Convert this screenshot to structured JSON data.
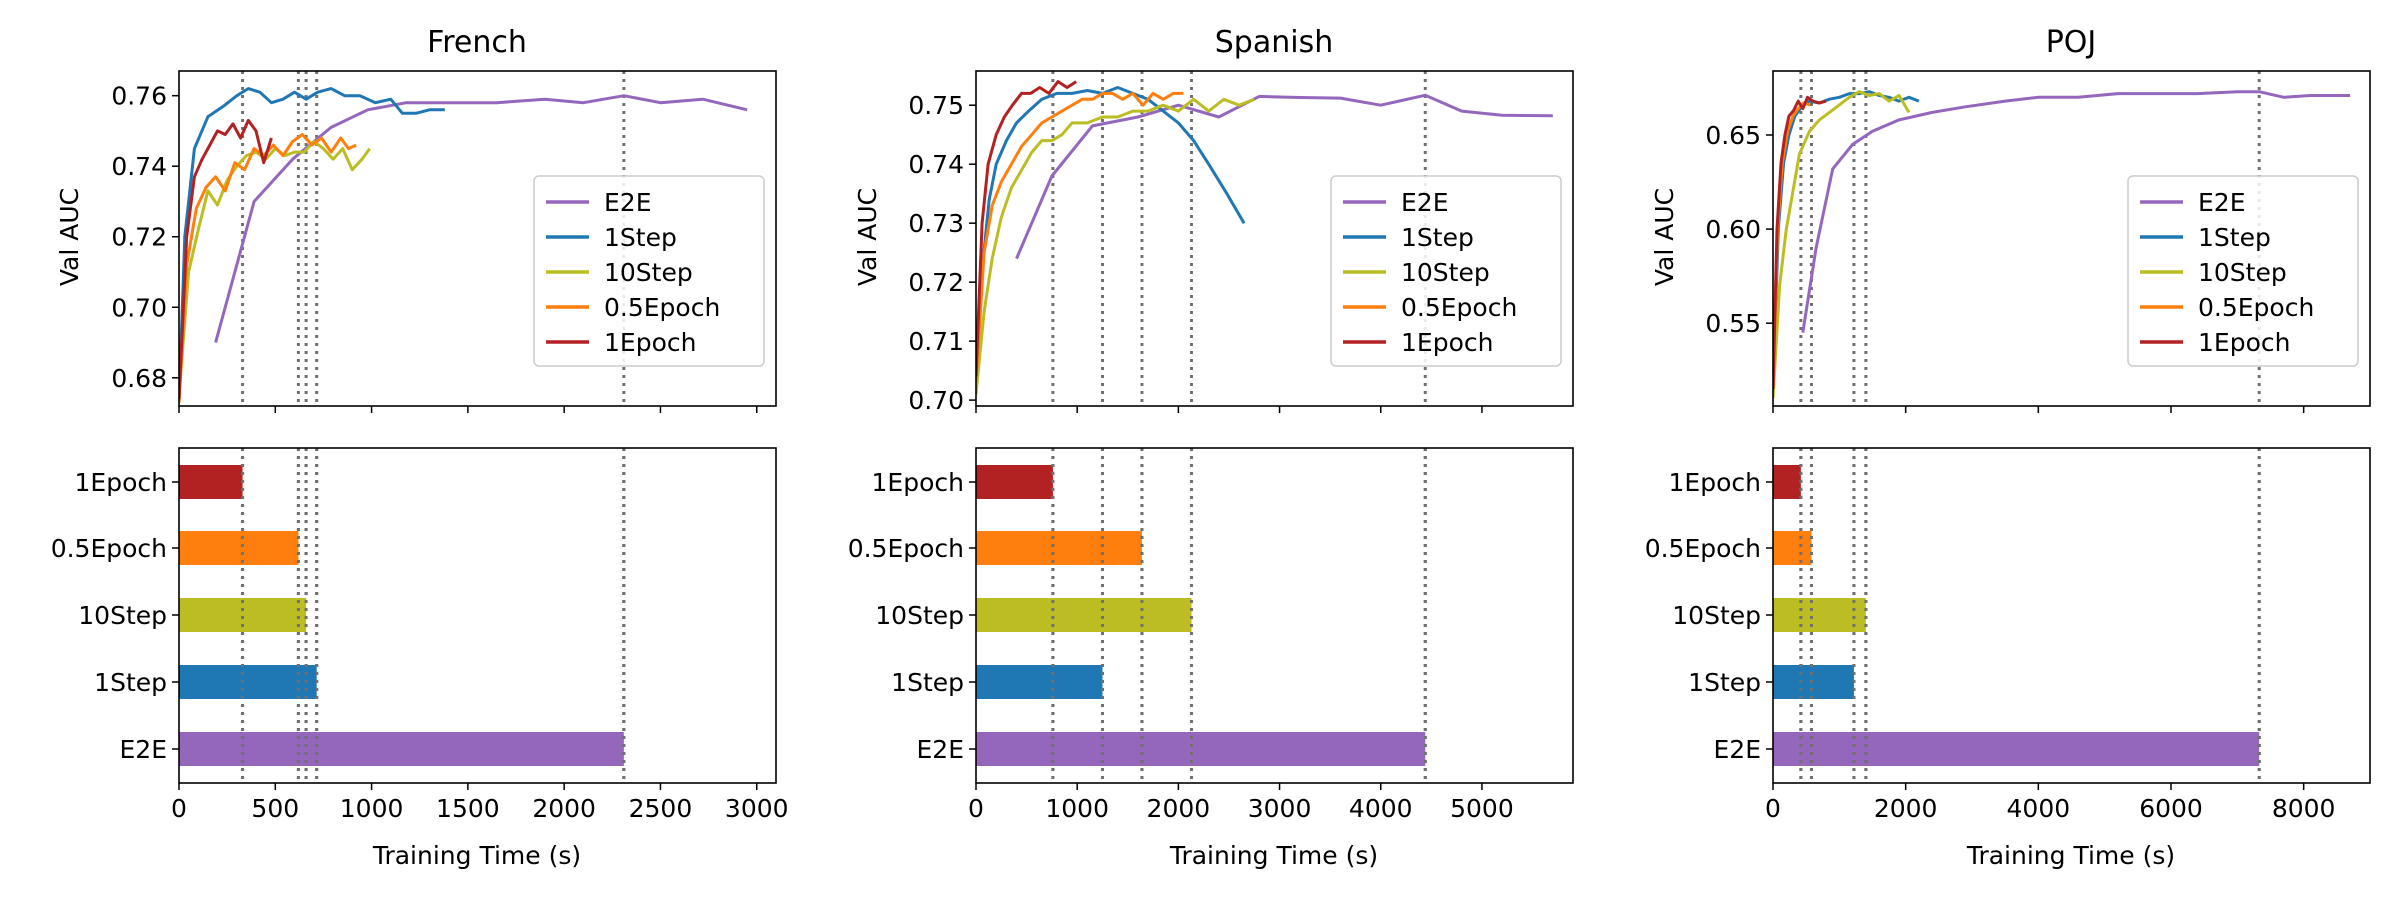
{
  "colors": {
    "E2E": "#9467bd",
    "1Step": "#1f77b4",
    "10Step": "#bcbd22",
    "0.5Epoch": "#ff7f0e",
    "1Epoch": "#b22222",
    "vline": "#707070"
  },
  "chart_data": [
    {
      "type": "line",
      "title": "French",
      "xlabel": "Training Time (s)",
      "ylabel": "Val AUC",
      "xlim": [
        0,
        3100
      ],
      "ylim": [
        0.672,
        0.767
      ],
      "xticks": [
        0,
        500,
        1000,
        1500,
        2000,
        2500,
        3000
      ],
      "yticks": [
        0.68,
        0.7,
        0.72,
        0.74,
        0.76
      ],
      "ytick_labels": [
        "0.68",
        "0.70",
        "0.72",
        "0.74",
        "0.76"
      ],
      "legend": [
        "E2E",
        "1Step",
        "10Step",
        "0.5Epoch",
        "1Epoch"
      ],
      "series": [
        {
          "name": "E2E",
          "x": [
            190,
            390,
            590,
            790,
            980,
            1180,
            1400,
            1650,
            1900,
            2100,
            2310,
            2500,
            2720,
            2950
          ],
          "y": [
            0.69,
            0.73,
            0.742,
            0.751,
            0.756,
            0.758,
            0.758,
            0.758,
            0.759,
            0.758,
            0.76,
            0.758,
            0.759,
            0.756
          ]
        },
        {
          "name": "1Step",
          "x": [
            0,
            30,
            80,
            150,
            230,
            300,
            360,
            420,
            480,
            540,
            600,
            660,
            720,
            790,
            860,
            940,
            1020,
            1100,
            1160,
            1230,
            1300,
            1380
          ],
          "y": [
            0.673,
            0.72,
            0.745,
            0.754,
            0.757,
            0.76,
            0.762,
            0.761,
            0.758,
            0.759,
            0.761,
            0.759,
            0.761,
            0.762,
            0.76,
            0.76,
            0.758,
            0.759,
            0.755,
            0.755,
            0.756,
            0.756
          ]
        },
        {
          "name": "10Step",
          "x": [
            0,
            50,
            100,
            150,
            200,
            250,
            300,
            350,
            400,
            450,
            500,
            550,
            600,
            650,
            700,
            750,
            800,
            850,
            900,
            950,
            990
          ],
          "y": [
            0.675,
            0.71,
            0.722,
            0.733,
            0.729,
            0.736,
            0.74,
            0.743,
            0.744,
            0.742,
            0.745,
            0.743,
            0.744,
            0.744,
            0.747,
            0.745,
            0.742,
            0.745,
            0.739,
            0.742,
            0.745
          ]
        },
        {
          "name": "0.5Epoch",
          "x": [
            0,
            40,
            90,
            140,
            190,
            240,
            290,
            340,
            390,
            440,
            490,
            540,
            590,
            640,
            690,
            740,
            790,
            840,
            880,
            920
          ],
          "y": [
            0.673,
            0.712,
            0.728,
            0.734,
            0.737,
            0.733,
            0.741,
            0.739,
            0.745,
            0.743,
            0.746,
            0.743,
            0.747,
            0.749,
            0.746,
            0.748,
            0.744,
            0.748,
            0.745,
            0.746
          ]
        },
        {
          "name": "1Epoch",
          "x": [
            0,
            40,
            80,
            120,
            160,
            200,
            240,
            280,
            320,
            360,
            400,
            440,
            480
          ],
          "y": [
            0.674,
            0.72,
            0.737,
            0.742,
            0.746,
            0.75,
            0.749,
            0.752,
            0.748,
            0.753,
            0.75,
            0.741,
            0.748
          ]
        }
      ],
      "vlines": [
        330,
        620,
        660,
        715,
        2310
      ],
      "bars": {
        "type": "barh",
        "categories": [
          "1Epoch",
          "0.5Epoch",
          "10Step",
          "1Step",
          "E2E"
        ],
        "values": [
          330,
          620,
          660,
          715,
          2310
        ],
        "xlim": [
          0,
          3100
        ],
        "xticks": [
          0,
          500,
          1000,
          1500,
          2000,
          2500,
          3000
        ]
      }
    },
    {
      "type": "line",
      "title": "Spanish",
      "xlabel": "Training Time (s)",
      "ylabel": "Val AUC",
      "xlim": [
        0,
        5900
      ],
      "ylim": [
        0.699,
        0.7558
      ],
      "xticks": [
        0,
        1000,
        2000,
        3000,
        4000,
        5000
      ],
      "yticks": [
        0.7,
        0.71,
        0.72,
        0.73,
        0.74,
        0.75
      ],
      "ytick_labels": [
        "0.70",
        "0.71",
        "0.72",
        "0.73",
        "0.74",
        "0.75"
      ],
      "legend": [
        "E2E",
        "1Step",
        "10Step",
        "0.5Epoch",
        "1Epoch"
      ],
      "series": [
        {
          "name": "E2E",
          "x": [
            400,
            750,
            1150,
            1600,
            2000,
            2400,
            2800,
            3200,
            3600,
            4000,
            4440,
            4800,
            5200,
            5700
          ],
          "y": [
            0.724,
            0.738,
            0.7465,
            0.748,
            0.75,
            0.748,
            0.7515,
            0.7513,
            0.7512,
            0.75,
            0.7517,
            0.749,
            0.7483,
            0.7482
          ]
        },
        {
          "name": "1Step",
          "x": [
            0,
            60,
            130,
            200,
            300,
            400,
            520,
            650,
            800,
            950,
            1100,
            1250,
            1400,
            1550,
            1700,
            1850,
            2000,
            2150,
            2300,
            2480,
            2650
          ],
          "y": [
            0.702,
            0.722,
            0.734,
            0.74,
            0.744,
            0.747,
            0.749,
            0.751,
            0.752,
            0.752,
            0.7525,
            0.752,
            0.753,
            0.752,
            0.751,
            0.749,
            0.747,
            0.744,
            0.74,
            0.735,
            0.73
          ]
        },
        {
          "name": "10Step",
          "x": [
            0,
            80,
            160,
            250,
            350,
            450,
            550,
            650,
            750,
            850,
            950,
            1100,
            1250,
            1400,
            1550,
            1700,
            1850,
            2000,
            2150,
            2300,
            2450,
            2600,
            2750
          ],
          "y": [
            0.701,
            0.715,
            0.724,
            0.731,
            0.736,
            0.739,
            0.742,
            0.744,
            0.744,
            0.745,
            0.747,
            0.747,
            0.748,
            0.748,
            0.749,
            0.749,
            0.75,
            0.749,
            0.751,
            0.749,
            0.751,
            0.75,
            0.751
          ]
        },
        {
          "name": "0.5Epoch",
          "x": [
            0,
            80,
            160,
            250,
            350,
            450,
            550,
            650,
            750,
            850,
            950,
            1050,
            1150,
            1250,
            1350,
            1450,
            1550,
            1650,
            1750,
            1850,
            1950,
            2050
          ],
          "y": [
            0.703,
            0.725,
            0.733,
            0.737,
            0.74,
            0.743,
            0.745,
            0.747,
            0.748,
            0.749,
            0.75,
            0.751,
            0.751,
            0.752,
            0.752,
            0.751,
            0.752,
            0.75,
            0.752,
            0.751,
            0.752,
            0.752
          ]
        },
        {
          "name": "1Epoch",
          "x": [
            0,
            60,
            120,
            200,
            280,
            360,
            450,
            540,
            630,
            720,
            810,
            900,
            990
          ],
          "y": [
            0.704,
            0.73,
            0.74,
            0.745,
            0.748,
            0.75,
            0.752,
            0.752,
            0.753,
            0.752,
            0.754,
            0.753,
            0.754
          ]
        }
      ],
      "vlines": [
        760,
        1250,
        1640,
        2130,
        4440
      ],
      "bars": {
        "type": "barh",
        "categories": [
          "1Epoch",
          "0.5Epoch",
          "10Step",
          "1Step",
          "E2E"
        ],
        "values": [
          760,
          1640,
          2130,
          1250,
          4440
        ],
        "xlim": [
          0,
          5900
        ],
        "xticks": [
          0,
          1000,
          2000,
          3000,
          4000,
          5000
        ]
      }
    },
    {
      "type": "line",
      "title": "POJ",
      "xlabel": "Training Time (s)",
      "ylabel": "Val AUC",
      "xlim": [
        0,
        9000
      ],
      "ylim": [
        0.506,
        0.684
      ],
      "xticks": [
        0,
        2000,
        4000,
        6000,
        8000
      ],
      "yticks": [
        0.55,
        0.6,
        0.65
      ],
      "ytick_labels": [
        "0.55",
        "0.60",
        "0.65"
      ],
      "legend": [
        "E2E",
        "1Step",
        "10Step",
        "0.5Epoch",
        "1Epoch"
      ],
      "series": [
        {
          "name": "E2E",
          "x": [
            450,
            650,
            900,
            1200,
            1500,
            1900,
            2400,
            2900,
            3500,
            4000,
            4600,
            5200,
            5800,
            6400,
            7000,
            7330,
            7700,
            8100,
            8400,
            8700
          ],
          "y": [
            0.545,
            0.59,
            0.632,
            0.645,
            0.652,
            0.658,
            0.662,
            0.665,
            0.668,
            0.67,
            0.67,
            0.672,
            0.672,
            0.672,
            0.673,
            0.673,
            0.67,
            0.671,
            0.671,
            0.671
          ]
        },
        {
          "name": "1Step",
          "x": [
            0,
            80,
            160,
            240,
            330,
            430,
            550,
            700,
            850,
            1000,
            1150,
            1300,
            1450,
            1600,
            1750,
            1900,
            2050,
            2200
          ],
          "y": [
            0.515,
            0.6,
            0.635,
            0.65,
            0.66,
            0.665,
            0.668,
            0.667,
            0.669,
            0.67,
            0.672,
            0.672,
            0.673,
            0.671,
            0.67,
            0.668,
            0.67,
            0.668
          ]
        },
        {
          "name": "10Step",
          "x": [
            0,
            100,
            200,
            300,
            400,
            550,
            700,
            850,
            1000,
            1150,
            1300,
            1450,
            1600,
            1750,
            1900,
            2050
          ],
          "y": [
            0.51,
            0.57,
            0.6,
            0.62,
            0.64,
            0.652,
            0.658,
            0.662,
            0.666,
            0.67,
            0.673,
            0.671,
            0.672,
            0.668,
            0.671,
            0.662
          ]
        },
        {
          "name": "0.5Epoch",
          "x": [
            0,
            70,
            140,
            220,
            300,
            380,
            460,
            560
          ],
          "y": [
            0.515,
            0.6,
            0.635,
            0.652,
            0.66,
            0.664,
            0.667,
            0.666
          ]
        },
        {
          "name": "1Epoch",
          "x": [
            0,
            60,
            120,
            180,
            240,
            310,
            380,
            450,
            520,
            600,
            700,
            800
          ],
          "y": [
            0.515,
            0.6,
            0.635,
            0.65,
            0.66,
            0.663,
            0.668,
            0.664,
            0.67,
            0.668,
            0.667,
            0.668
          ]
        }
      ],
      "vlines": [
        420,
        580,
        1220,
        1400,
        7330
      ],
      "bars": {
        "type": "barh",
        "categories": [
          "1Epoch",
          "0.5Epoch",
          "10Step",
          "1Step",
          "E2E"
        ],
        "values": [
          420,
          580,
          1400,
          1220,
          7330
        ],
        "xlim": [
          0,
          9000
        ],
        "xticks": [
          0,
          2000,
          4000,
          6000,
          8000
        ]
      }
    }
  ]
}
